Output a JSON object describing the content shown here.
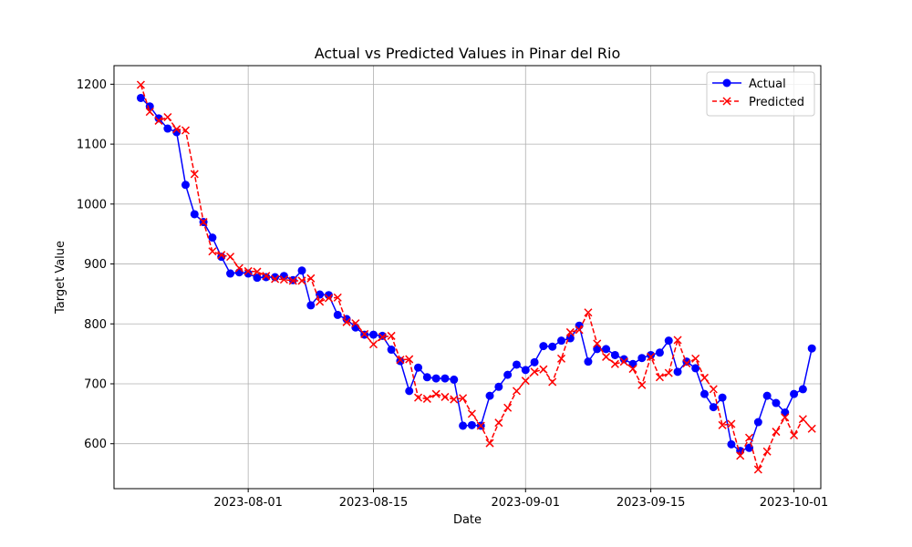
{
  "chart_data": {
    "type": "line",
    "title": "Actual vs Predicted Values in Pinar del Rio",
    "xlabel": "Date",
    "ylabel": "Target Value",
    "x_start": "2023-07-20",
    "x_range": [
      "2023-07-17",
      "2023-10-04"
    ],
    "ylim": [
      525,
      1231
    ],
    "x_ticks": [
      {
        "date": "2023-08-01",
        "label": "2023-08-01"
      },
      {
        "date": "2023-08-15",
        "label": "2023-08-15"
      },
      {
        "date": "2023-09-01",
        "label": "2023-09-01"
      },
      {
        "date": "2023-09-15",
        "label": "2023-09-15"
      },
      {
        "date": "2023-10-01",
        "label": "2023-10-01"
      }
    ],
    "y_ticks": [
      600,
      700,
      800,
      900,
      1000,
      1100,
      1200
    ],
    "grid": true,
    "legend": "top-right",
    "series": [
      {
        "name": "Actual",
        "color": "#0000ff",
        "marker": "circle",
        "linestyle": "solid",
        "values": [
          1177,
          1163,
          1143,
          1126,
          1120,
          1032,
          983,
          970,
          944,
          912,
          884,
          886,
          884,
          877,
          878,
          878,
          880,
          873,
          889,
          831,
          849,
          848,
          815,
          808,
          794,
          782,
          782,
          780,
          757,
          738,
          688,
          727,
          711,
          709,
          709,
          707,
          630,
          631,
          630,
          680,
          695,
          715,
          732,
          723,
          736,
          763,
          762,
          772,
          776,
          797,
          737,
          758,
          758,
          748,
          741,
          733,
          743,
          748,
          752,
          772,
          720,
          737,
          726,
          683,
          661,
          677,
          599,
          588,
          593,
          636,
          680,
          668,
          652,
          683,
          691,
          759
        ]
      },
      {
        "name": "Predicted",
        "color": "#ff0000",
        "marker": "x",
        "linestyle": "dashed",
        "values": [
          1199,
          1154,
          1139,
          1145,
          1125,
          1123,
          1050,
          970,
          921,
          915,
          912,
          893,
          888,
          887,
          880,
          875,
          874,
          872,
          872,
          876,
          837,
          843,
          844,
          803,
          801,
          783,
          766,
          778,
          780,
          740,
          741,
          677,
          675,
          683,
          678,
          674,
          676,
          650,
          630,
          601,
          635,
          660,
          688,
          705,
          720,
          724,
          703,
          742,
          786,
          790,
          819,
          767,
          745,
          733,
          737,
          725,
          698,
          745,
          711,
          718,
          773,
          734,
          742,
          710,
          691,
          631,
          633,
          580,
          610,
          557,
          587,
          620,
          644,
          614,
          641,
          625
        ]
      }
    ]
  }
}
